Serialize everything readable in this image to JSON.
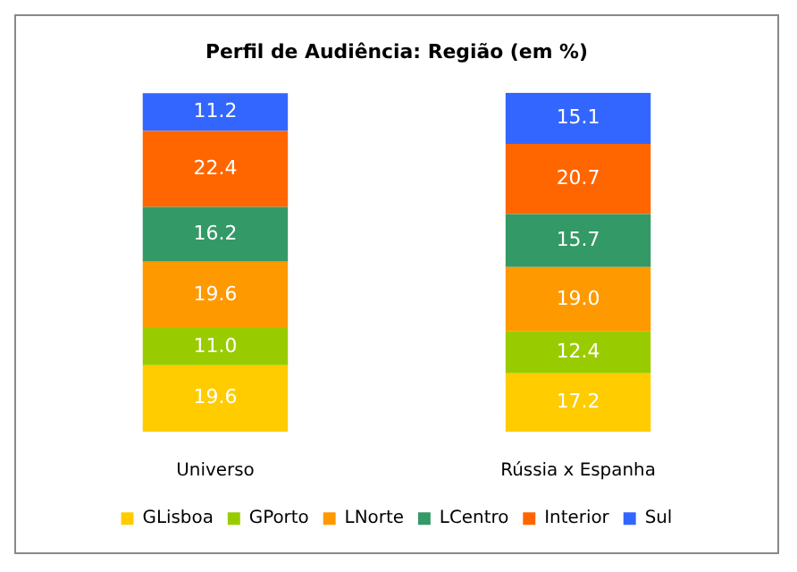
{
  "chart_data": {
    "type": "bar",
    "title": "Perfil de Audiência: Região (em %)",
    "stacked": true,
    "legend": "bottom",
    "tick_labels": "x",
    "grid": false,
    "categories": [
      "Universo",
      "Rússia x Espanha"
    ],
    "series": [
      {
        "name": "GLisboa",
        "color": "#ffcc00",
        "values": [
          19.6,
          17.2
        ],
        "value_labels": [
          "19.6",
          "17.2"
        ]
      },
      {
        "name": "GPorto",
        "color": "#99cc00",
        "values": [
          11.0,
          12.4
        ],
        "value_labels": [
          "11.0",
          "12.4"
        ]
      },
      {
        "name": "LNorte",
        "color": "#ff9900",
        "values": [
          19.6,
          19.0
        ],
        "value_labels": [
          "19.6",
          "19.0"
        ]
      },
      {
        "name": "LCentro",
        "color": "#339966",
        "values": [
          16.2,
          15.7
        ],
        "value_labels": [
          "16.2",
          "15.7"
        ]
      },
      {
        "name": "Interior",
        "color": "#ff6600",
        "values": [
          22.4,
          20.7
        ],
        "value_labels": [
          "22.4",
          "20.7"
        ]
      },
      {
        "name": "Sul",
        "color": "#3366ff",
        "values": [
          11.2,
          15.1
        ],
        "value_labels": [
          "11.2",
          "15.1"
        ]
      }
    ]
  }
}
